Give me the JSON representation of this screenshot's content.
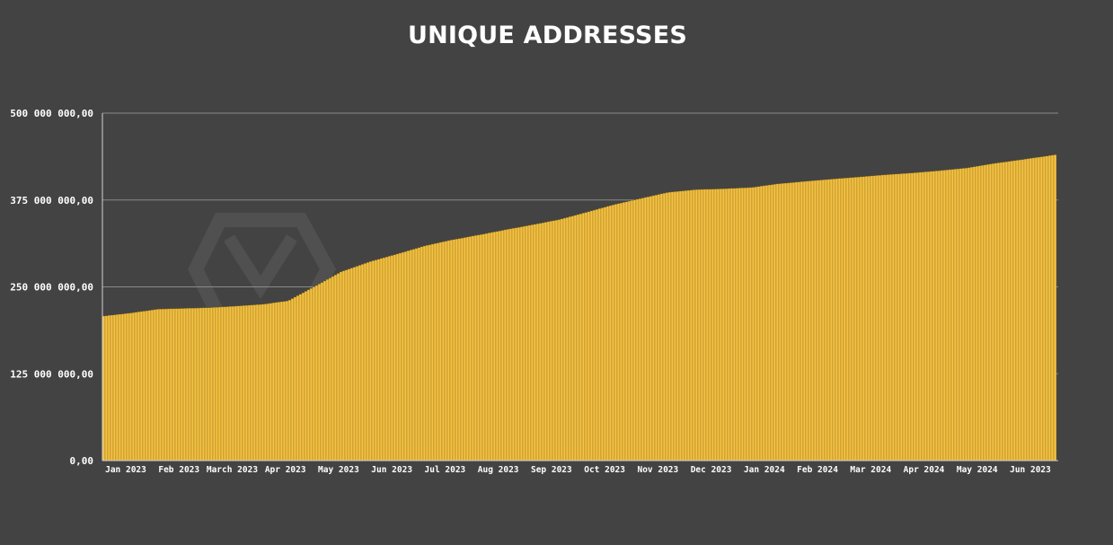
{
  "chart_data": {
    "type": "bar",
    "title": "UNIQUE ADDRESSES",
    "xlabel": "",
    "ylabel": "",
    "ylim": [
      0,
      500000000
    ],
    "yticks": [
      {
        "value": 0,
        "label": "0,00"
      },
      {
        "value": 125000000,
        "label": "125 000 000,00"
      },
      {
        "value": 250000000,
        "label": "250 000 000,00"
      },
      {
        "value": 375000000,
        "label": "375 000 000,00"
      },
      {
        "value": 500000000,
        "label": "500 000 000,00"
      }
    ],
    "x_ticks": [
      "Jan 2023",
      "Feb 2023",
      "March 2023",
      "Apr 2023",
      "May 2023",
      "Jun 2023",
      "Jul 2023",
      "Aug 2023",
      "Sep 2023",
      "Oct 2023",
      "Nov 2023",
      "Dec 2023",
      "Jan 2024",
      "Feb 2024",
      "Mar 2024",
      "Apr 2024",
      "May 2024",
      "Jun 2023"
    ],
    "grid": true,
    "legend": "none",
    "bar_color": "#f5c242",
    "bar_edge_color": "#7a5d12",
    "series": [
      {
        "x": [
          "2023-01-01",
          "2023-01-15",
          "2023-02-01",
          "2023-02-15",
          "2023-03-01",
          "2023-03-15",
          "2023-04-01",
          "2023-04-15",
          "2023-05-01",
          "2023-05-15",
          "2023-06-01",
          "2023-06-15",
          "2023-07-01",
          "2023-07-15",
          "2023-08-01",
          "2023-08-15",
          "2023-09-01",
          "2023-09-15",
          "2023-10-01",
          "2023-10-15",
          "2023-11-01",
          "2023-11-15",
          "2023-12-01",
          "2023-12-15",
          "2024-01-01",
          "2024-01-15",
          "2024-02-01",
          "2024-02-15",
          "2024-03-01",
          "2024-03-15",
          "2024-04-01",
          "2024-04-15",
          "2024-05-01",
          "2024-05-15",
          "2024-06-01",
          "2024-06-20"
        ],
        "values": [
          208000000,
          212000000,
          218000000,
          219000000,
          220000000,
          222000000,
          225000000,
          230000000,
          252000000,
          272000000,
          287000000,
          297000000,
          309000000,
          317000000,
          325000000,
          332000000,
          340000000,
          347000000,
          358000000,
          368000000,
          378000000,
          386000000,
          390000000,
          391000000,
          393000000,
          398000000,
          402000000,
          405000000,
          408000000,
          411000000,
          414000000,
          417000000,
          421000000,
          427000000,
          433000000,
          440000000
        ]
      }
    ]
  }
}
